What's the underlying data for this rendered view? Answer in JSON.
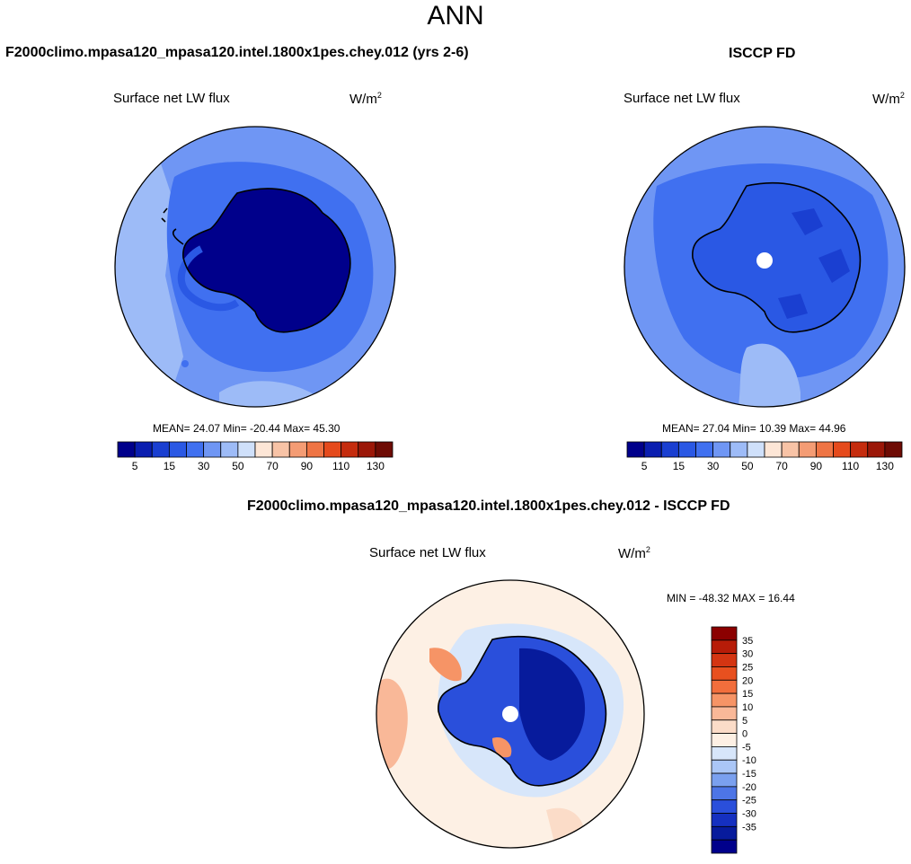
{
  "season": "ANN",
  "panels": {
    "test": {
      "title": "F2000climo.mpasa120_mpasa120.intel.1800x1pes.chey.012 (yrs 2-6)",
      "var": "Surface net LW flux",
      "units": "W/m",
      "units_exp": "2",
      "stats": "MEAN=  24.07  Min= -20.44  Max=  45.30"
    },
    "obs": {
      "title": "ISCCP FD",
      "var": "Surface net LW flux",
      "units": "W/m",
      "units_exp": "2",
      "stats": "MEAN=  27.04  Min=  10.39  Max=  44.96"
    },
    "diff": {
      "title": "F2000climo.mpasa120_mpasa120.intel.1800x1pes.chey.012 - ISCCP FD",
      "var": "Surface net LW flux",
      "units": "W/m",
      "units_exp": "2",
      "stats": "MIN = -48.32 MAX =  16.44"
    }
  },
  "chart_data": [
    {
      "type": "heatmap",
      "projection": "south-polar-stereographic",
      "title": "F2000climo.mpasa120_mpasa120.intel.1800x1pes.chey.012 (yrs 2-6)",
      "variable": "Surface net LW flux",
      "units": "W/m2",
      "mean": 24.07,
      "min": -20.44,
      "max": 45.3,
      "colorbar": {
        "orientation": "horizontal",
        "levels": [
          5,
          10,
          15,
          20,
          30,
          40,
          50,
          60,
          70,
          80,
          90,
          100,
          110,
          120,
          130
        ],
        "tick_labels": [
          "5",
          "15",
          "30",
          "50",
          "70",
          "90",
          "110",
          "130"
        ],
        "colors": [
          "#00008b",
          "#0a1eb0",
          "#1a3fd1",
          "#2a58e4",
          "#4070f0",
          "#6f96f4",
          "#9dbbf7",
          "#cfe0fa",
          "#fde6d6",
          "#f8c3a6",
          "#f49c74",
          "#ef7444",
          "#e54a1c",
          "#c52c0e",
          "#9b1708",
          "#6e0b04"
        ]
      }
    },
    {
      "type": "heatmap",
      "projection": "south-polar-stereographic",
      "title": "ISCCP FD",
      "variable": "Surface net LW flux",
      "units": "W/m2",
      "mean": 27.04,
      "min": 10.39,
      "max": 44.96,
      "colorbar": {
        "orientation": "horizontal",
        "levels": [
          5,
          10,
          15,
          20,
          30,
          40,
          50,
          60,
          70,
          80,
          90,
          100,
          110,
          120,
          130
        ],
        "tick_labels": [
          "5",
          "15",
          "30",
          "50",
          "70",
          "90",
          "110",
          "130"
        ],
        "colors": [
          "#00008b",
          "#0a1eb0",
          "#1a3fd1",
          "#2a58e4",
          "#4070f0",
          "#6f96f4",
          "#9dbbf7",
          "#cfe0fa",
          "#fde6d6",
          "#f8c3a6",
          "#f49c74",
          "#ef7444",
          "#e54a1c",
          "#c52c0e",
          "#9b1708",
          "#6e0b04"
        ]
      }
    },
    {
      "type": "heatmap",
      "projection": "south-polar-stereographic",
      "title": "F2000climo.mpasa120_mpasa120.intel.1800x1pes.chey.012 - ISCCP FD",
      "variable": "Surface net LW flux",
      "units": "W/m2",
      "min": -48.32,
      "max": 16.44,
      "colorbar": {
        "orientation": "vertical",
        "levels": [
          35,
          30,
          25,
          20,
          15,
          10,
          5,
          0,
          -5,
          -10,
          -15,
          -20,
          -25,
          -30,
          -35
        ],
        "tick_labels": [
          "35",
          "30",
          "25",
          "20",
          "15",
          "10",
          "5",
          "0",
          "-5",
          "-10",
          "-15",
          "-20",
          "-25",
          "-30",
          "-35"
        ],
        "colors": [
          "#8b0000",
          "#b71c08",
          "#d43512",
          "#e8501f",
          "#f26e3c",
          "#f69466",
          "#f9b898",
          "#fbdcc8",
          "#fdf0e4",
          "#d7e6fa",
          "#aac6f6",
          "#7aa0ef",
          "#4d75e6",
          "#2a4fdb",
          "#1530c0",
          "#071b9c",
          "#00008b"
        ]
      }
    }
  ]
}
